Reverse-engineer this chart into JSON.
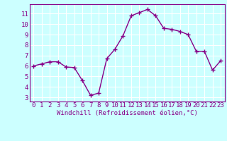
{
  "x": [
    0,
    1,
    2,
    3,
    4,
    5,
    6,
    7,
    8,
    9,
    10,
    11,
    12,
    13,
    14,
    15,
    16,
    17,
    18,
    19,
    20,
    21,
    22,
    23
  ],
  "y": [
    6.0,
    6.2,
    6.4,
    6.4,
    5.9,
    5.85,
    4.6,
    3.2,
    3.4,
    6.7,
    7.6,
    8.9,
    10.8,
    11.1,
    11.4,
    10.8,
    9.6,
    9.5,
    9.3,
    9.0,
    7.4,
    7.4,
    5.6,
    6.5
  ],
  "line_color": "#880088",
  "bg_color": "#ccffff",
  "grid_color": "#aadddd",
  "spine_color": "#880088",
  "xlabel": "Windchill (Refroidissement éolien,°C)",
  "yticks": [
    3,
    4,
    5,
    6,
    7,
    8,
    9,
    10,
    11
  ],
  "xlim": [
    -0.5,
    23.5
  ],
  "ylim": [
    2.6,
    11.9
  ],
  "marker": "+",
  "linewidth": 1.0,
  "markersize": 4,
  "markeredgewidth": 1.0,
  "xlabel_fontsize": 6.5,
  "tick_fontsize": 6.5
}
